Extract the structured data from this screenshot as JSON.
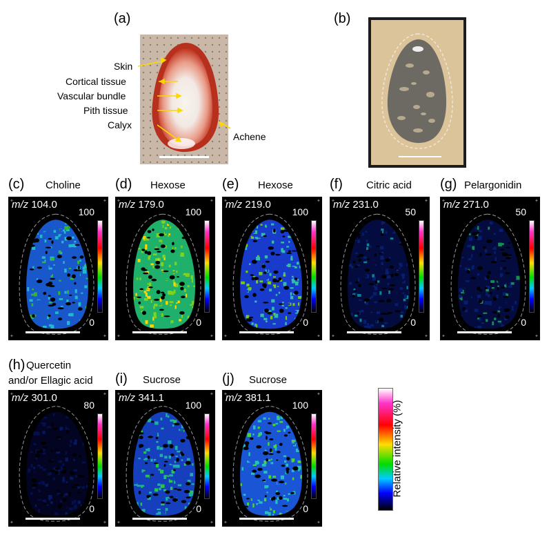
{
  "panel_a": {
    "label": "(a)",
    "annotations": [
      "Skin",
      "Cortical tissue",
      "Vascular bundle",
      "Pith tissue",
      "Calyx",
      "Achene"
    ]
  },
  "panel_b": {
    "label": "(b)"
  },
  "msi_panels": [
    {
      "label": "(c)",
      "title": "Choline",
      "mz_prefix": "m/z",
      "mz": "104.0",
      "max": "100",
      "min": "0"
    },
    {
      "label": "(d)",
      "title": "Hexose",
      "mz_prefix": "m/z",
      "mz": "179.0",
      "max": "100",
      "min": "0"
    },
    {
      "label": "(e)",
      "title": "Hexose",
      "mz_prefix": "m/z",
      "mz": "219.0",
      "max": "100",
      "min": "0"
    },
    {
      "label": "(f)",
      "title": "Citric acid",
      "mz_prefix": "m/z",
      "mz": "231.0",
      "max": "50",
      "min": "0"
    },
    {
      "label": "(g)",
      "title": "Pelargonidin",
      "mz_prefix": "m/z",
      "mz": "271.0",
      "max": "50",
      "min": "0"
    },
    {
      "label": "(h)",
      "title": "Quercetin",
      "title2": "and/or Ellagic acid",
      "mz_prefix": "m/z",
      "mz": "301.0",
      "max": "80",
      "min": "0"
    },
    {
      "label": "(i)",
      "title": "Sucrose",
      "mz_prefix": "m/z",
      "mz": "341.1",
      "max": "100",
      "min": "0"
    },
    {
      "label": "(j)",
      "title": "Sucrose",
      "mz_prefix": "m/z",
      "mz": "381.1",
      "max": "100",
      "min": "0"
    }
  ],
  "colorbar": {
    "label": "Relative intensity (%)"
  },
  "colors": {
    "gradient_top": "#ffffff",
    "gradient_bottom": "#000000",
    "arrow": "#ffd700"
  }
}
